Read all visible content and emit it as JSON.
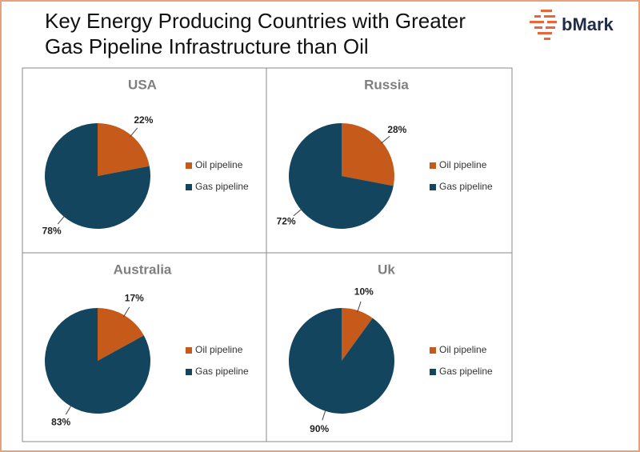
{
  "header": {
    "title": "Key Energy Producing Countries with Greater Gas Pipeline Infrastructure than Oil",
    "logo": "bMark"
  },
  "chart_data": [
    {
      "type": "pie",
      "title": "USA",
      "categories": [
        "Oil pipeline",
        "Gas pipeline"
      ],
      "values": [
        22,
        78
      ],
      "value_labels": [
        "22%",
        "78%"
      ],
      "colors": [
        "#c55a1a",
        "#14455f"
      ]
    },
    {
      "type": "pie",
      "title": "Russia",
      "categories": [
        "Oil pipeline",
        "Gas pipeline"
      ],
      "values": [
        28,
        72
      ],
      "value_labels": [
        "28%",
        "72%"
      ],
      "colors": [
        "#c55a1a",
        "#14455f"
      ]
    },
    {
      "type": "pie",
      "title": "Australia",
      "categories": [
        "Oil pipeline",
        "Gas pipeline"
      ],
      "values": [
        17,
        83
      ],
      "value_labels": [
        "17%",
        "83%"
      ],
      "colors": [
        "#c55a1a",
        "#14455f"
      ]
    },
    {
      "type": "pie",
      "title": "Uk",
      "categories": [
        "Oil pipeline",
        "Gas pipeline"
      ],
      "values": [
        10,
        90
      ],
      "value_labels": [
        "10%",
        "90%"
      ],
      "colors": [
        "#c55a1a",
        "#14455f"
      ]
    }
  ]
}
